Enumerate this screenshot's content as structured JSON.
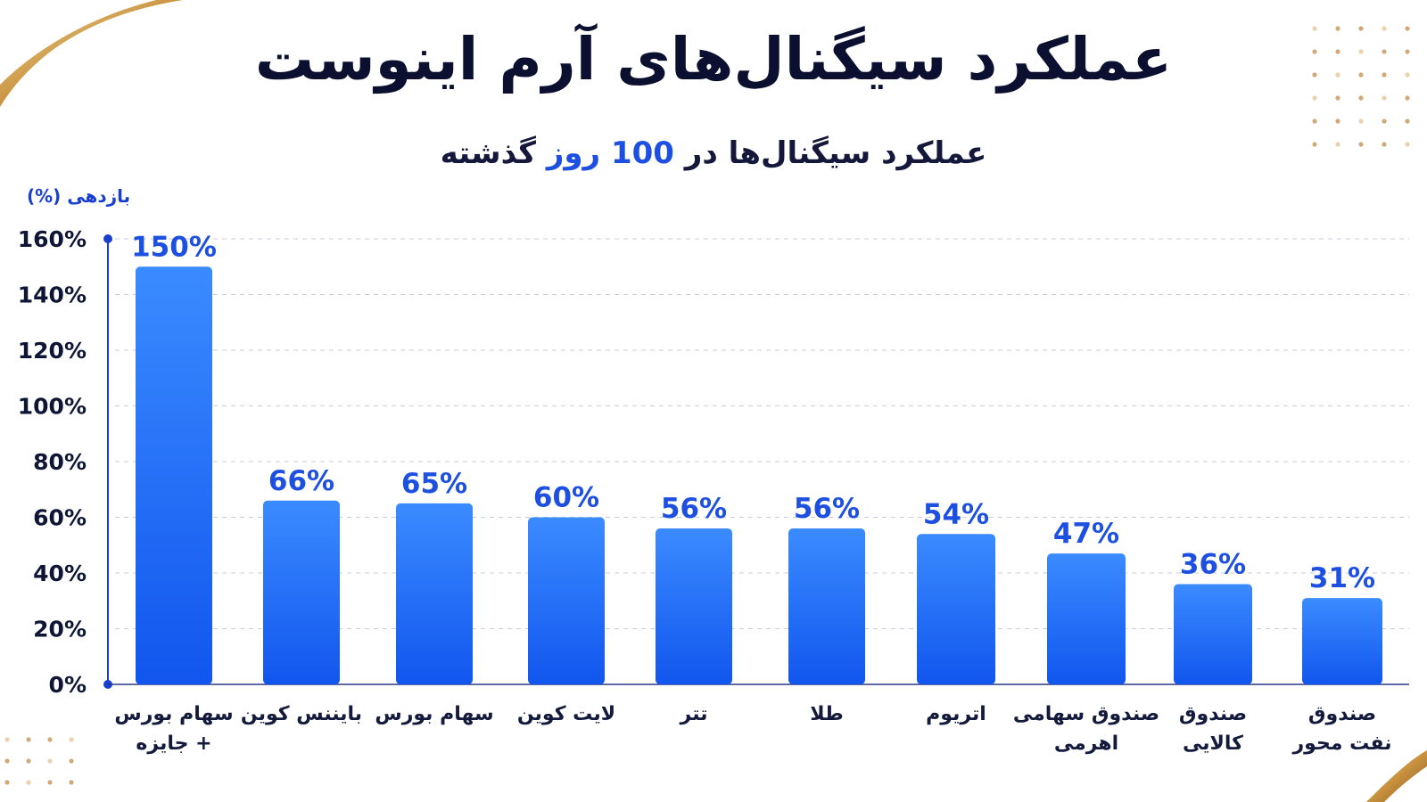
{
  "title": "عملکرد سیگنال‌های آرم اینوست",
  "subtitle": {
    "before": "عملکرد سیگنال‌ها در",
    "number": "100",
    "unit": "روز",
    "after": "گذشته"
  },
  "colors": {
    "title": "#0b1030",
    "accent": "#1d4fe0",
    "bar_top": "#3b8bff",
    "bar_bottom": "#1156ee",
    "axis": "#1a3fcf",
    "gold": "#c9933f"
  },
  "chart_data": {
    "type": "bar",
    "ylabel": "بازدهی (%)",
    "ylim": [
      0,
      160
    ],
    "yticks": [
      0,
      20,
      40,
      60,
      80,
      100,
      120,
      140,
      160
    ],
    "ytick_labels": [
      "0%",
      "20%",
      "40%",
      "60%",
      "80%",
      "100%",
      "120%",
      "140%",
      "160%"
    ],
    "categories": [
      [
        "سهام بورس",
        "+ جایزه"
      ],
      [
        "بایننس کوین"
      ],
      [
        "سهام بورس"
      ],
      [
        "لایت کوین"
      ],
      [
        "تتر"
      ],
      [
        "طلا"
      ],
      [
        "اتریوم"
      ],
      [
        "صندوق سهامی",
        "اهرمی"
      ],
      [
        "صندوق",
        "کالایی"
      ],
      [
        "صندوق",
        "نفت محور"
      ]
    ],
    "values": [
      150,
      66,
      65,
      60,
      56,
      56,
      54,
      47,
      36,
      31
    ],
    "data_labels": [
      "150%",
      "66%",
      "65%",
      "60%",
      "56%",
      "56%",
      "54%",
      "47%",
      "36%",
      "31%"
    ],
    "grid": true
  }
}
